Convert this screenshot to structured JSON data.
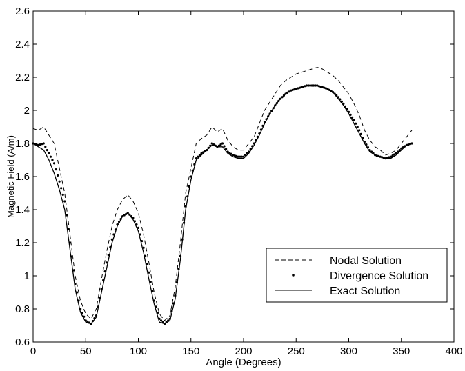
{
  "chart_data": {
    "type": "line",
    "title": "",
    "xlabel": "Angle (Degrees)",
    "ylabel": "Magnetic Field (A/m)",
    "xlim": [
      0,
      400
    ],
    "ylim": [
      0.6,
      2.6
    ],
    "xticks": [
      "0",
      "50",
      "100",
      "150",
      "200",
      "250",
      "300",
      "350",
      "400"
    ],
    "yticks": [
      "0.6",
      "0.8",
      "1",
      "1.2",
      "1.4",
      "1.6",
      "1.8",
      "2",
      "2.2",
      "2.4",
      "2.6"
    ],
    "grid": false,
    "legend_position": "bottom-right",
    "series": [
      {
        "name": "Nodal Solution",
        "style": "dashed",
        "color": "#000000",
        "x": [
          0,
          5,
          10,
          15,
          20,
          25,
          30,
          35,
          40,
          45,
          50,
          55,
          60,
          65,
          70,
          75,
          80,
          85,
          90,
          95,
          100,
          105,
          110,
          115,
          120,
          125,
          130,
          135,
          140,
          145,
          150,
          155,
          160,
          165,
          170,
          175,
          180,
          185,
          190,
          195,
          200,
          205,
          210,
          215,
          220,
          225,
          230,
          235,
          240,
          245,
          250,
          255,
          260,
          265,
          270,
          275,
          280,
          285,
          290,
          295,
          300,
          305,
          310,
          315,
          320,
          325,
          330,
          335,
          340,
          345,
          350,
          355,
          360
        ],
        "values": [
          1.89,
          1.88,
          1.9,
          1.85,
          1.8,
          1.65,
          1.5,
          1.25,
          1.0,
          0.85,
          0.77,
          0.74,
          0.8,
          0.98,
          1.15,
          1.3,
          1.4,
          1.46,
          1.49,
          1.45,
          1.38,
          1.25,
          1.08,
          0.9,
          0.77,
          0.73,
          0.76,
          0.93,
          1.2,
          1.5,
          1.65,
          1.8,
          1.83,
          1.85,
          1.9,
          1.87,
          1.89,
          1.82,
          1.78,
          1.76,
          1.76,
          1.8,
          1.84,
          1.92,
          2.0,
          2.05,
          2.1,
          2.15,
          2.18,
          2.2,
          2.22,
          2.23,
          2.24,
          2.25,
          2.26,
          2.25,
          2.23,
          2.21,
          2.18,
          2.14,
          2.1,
          2.04,
          1.97,
          1.88,
          1.82,
          1.78,
          1.76,
          1.73,
          1.74,
          1.76,
          1.8,
          1.84,
          1.88
        ]
      },
      {
        "name": "Divergence Solution",
        "style": "dots",
        "color": "#000000",
        "x": [
          0,
          5,
          10,
          15,
          20,
          25,
          30,
          35,
          40,
          45,
          50,
          55,
          60,
          65,
          70,
          75,
          80,
          85,
          90,
          95,
          100,
          105,
          110,
          115,
          120,
          125,
          130,
          135,
          140,
          145,
          150,
          155,
          160,
          165,
          170,
          175,
          180,
          185,
          190,
          195,
          200,
          205,
          210,
          215,
          220,
          225,
          230,
          235,
          240,
          245,
          250,
          255,
          260,
          265,
          270,
          275,
          280,
          285,
          290,
          295,
          300,
          305,
          310,
          315,
          320,
          325,
          330,
          335,
          340,
          345,
          350,
          355,
          360
        ],
        "values": [
          1.8,
          1.79,
          1.8,
          1.74,
          1.68,
          1.57,
          1.45,
          1.2,
          0.95,
          0.8,
          0.73,
          0.71,
          0.76,
          0.92,
          1.08,
          1.22,
          1.31,
          1.36,
          1.38,
          1.35,
          1.29,
          1.17,
          1.02,
          0.85,
          0.74,
          0.71,
          0.74,
          0.88,
          1.12,
          1.42,
          1.6,
          1.71,
          1.74,
          1.76,
          1.8,
          1.78,
          1.8,
          1.75,
          1.73,
          1.72,
          1.72,
          1.75,
          1.8,
          1.86,
          1.93,
          1.98,
          2.03,
          2.07,
          2.1,
          2.12,
          2.13,
          2.14,
          2.15,
          2.15,
          2.15,
          2.14,
          2.13,
          2.11,
          2.08,
          2.04,
          1.99,
          1.94,
          1.88,
          1.81,
          1.76,
          1.73,
          1.72,
          1.71,
          1.72,
          1.74,
          1.77,
          1.79,
          1.8
        ]
      },
      {
        "name": "Exact Solution",
        "style": "solid",
        "color": "#000000",
        "x": [
          0,
          5,
          10,
          15,
          20,
          25,
          30,
          35,
          40,
          45,
          50,
          55,
          60,
          65,
          70,
          75,
          80,
          85,
          90,
          95,
          100,
          105,
          110,
          115,
          120,
          125,
          130,
          135,
          140,
          145,
          150,
          155,
          160,
          165,
          170,
          175,
          180,
          185,
          190,
          195,
          200,
          205,
          210,
          215,
          220,
          225,
          230,
          235,
          240,
          245,
          250,
          255,
          260,
          265,
          270,
          275,
          280,
          285,
          290,
          295,
          300,
          305,
          310,
          315,
          320,
          325,
          330,
          335,
          340,
          345,
          350,
          355,
          360
        ],
        "values": [
          1.8,
          1.78,
          1.76,
          1.7,
          1.62,
          1.52,
          1.4,
          1.16,
          0.92,
          0.78,
          0.72,
          0.71,
          0.75,
          0.9,
          1.05,
          1.2,
          1.3,
          1.36,
          1.38,
          1.34,
          1.27,
          1.14,
          0.98,
          0.83,
          0.72,
          0.71,
          0.73,
          0.86,
          1.1,
          1.4,
          1.58,
          1.7,
          1.73,
          1.76,
          1.79,
          1.78,
          1.78,
          1.74,
          1.72,
          1.71,
          1.71,
          1.74,
          1.79,
          1.85,
          1.92,
          1.98,
          2.03,
          2.07,
          2.1,
          2.12,
          2.13,
          2.14,
          2.15,
          2.15,
          2.15,
          2.14,
          2.13,
          2.11,
          2.07,
          2.03,
          1.98,
          1.92,
          1.86,
          1.8,
          1.75,
          1.73,
          1.72,
          1.71,
          1.71,
          1.73,
          1.76,
          1.79,
          1.8
        ]
      }
    ]
  }
}
